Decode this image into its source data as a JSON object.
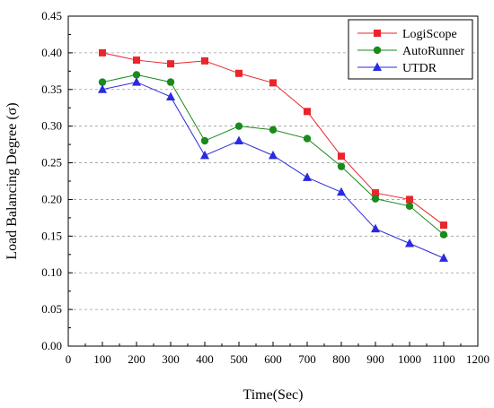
{
  "chart_data": {
    "type": "line",
    "xlabel": "Time(Sec)",
    "ylabel": "Load Balancing Degree (σ)",
    "xlim": [
      0,
      1200
    ],
    "ylim": [
      0.0,
      0.45
    ],
    "x_ticks": [
      "0",
      "100",
      "200",
      "300",
      "400",
      "500",
      "600",
      "700",
      "800",
      "900",
      "1000",
      "1100",
      "1200"
    ],
    "y_ticks": [
      "0.00",
      "0.05",
      "0.10",
      "0.15",
      "0.20",
      "0.25",
      "0.30",
      "0.35",
      "0.40",
      "0.45"
    ],
    "grid": "horizontal dashed",
    "legend_position": "top-right",
    "x": [
      100,
      200,
      300,
      400,
      500,
      600,
      700,
      800,
      900,
      1000,
      1100
    ],
    "series": [
      {
        "name": "LogiScope",
        "color": "#e8262b",
        "marker": "square",
        "values": [
          0.4,
          0.39,
          0.385,
          0.389,
          0.372,
          0.359,
          0.32,
          0.259,
          0.209,
          0.2,
          0.165
        ]
      },
      {
        "name": "AutoRunner",
        "color": "#1a8a1a",
        "marker": "circle",
        "values": [
          0.36,
          0.37,
          0.36,
          0.28,
          0.3,
          0.295,
          0.283,
          0.245,
          0.201,
          0.191,
          0.152
        ]
      },
      {
        "name": "UTDR",
        "color": "#2a2ae0",
        "marker": "triangle",
        "values": [
          0.35,
          0.36,
          0.34,
          0.26,
          0.28,
          0.26,
          0.23,
          0.21,
          0.16,
          0.14,
          0.12
        ]
      }
    ]
  }
}
